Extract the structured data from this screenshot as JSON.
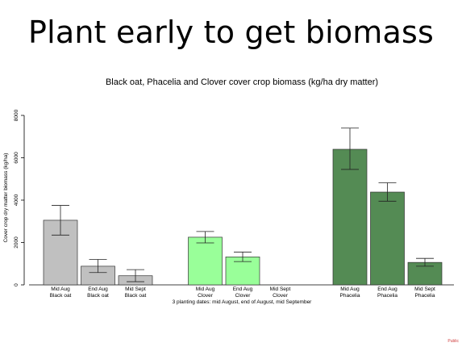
{
  "slide": {
    "title": "Plant early to get biomass",
    "footer": "Public"
  },
  "chart_data": {
    "type": "bar",
    "title": "Black oat, Phacelia and Clover cover crop biomass (kg/ha dry matter)",
    "xlabel": "3 planting dates: mid August, end of August, mid September",
    "ylabel": "Cover crop dry matter biomass (kg/ha)",
    "ylim": [
      0,
      8000
    ],
    "yticks": [
      0,
      2000,
      4000,
      6000,
      8000
    ],
    "grid": false,
    "colors": {
      "black_oat": "#c0c0c0",
      "clover": "#99ff99",
      "phacelia": "#548b54"
    },
    "bars": [
      {
        "line1": "Mid Aug",
        "line2": "Black oat",
        "value": 3050,
        "err_low": 2350,
        "err_high": 3750,
        "color": "#c0c0c0"
      },
      {
        "line1": "End Aug",
        "line2": "Black oat",
        "value": 880,
        "err_low": 580,
        "err_high": 1200,
        "color": "#c0c0c0"
      },
      {
        "line1": "Mid Sept",
        "line2": "Black oat",
        "value": 430,
        "err_low": 150,
        "err_high": 720,
        "color": "#c0c0c0"
      },
      {
        "line1": "Mid Aug",
        "line2": "Clover",
        "value": 2250,
        "err_low": 1980,
        "err_high": 2520,
        "color": "#99ff99"
      },
      {
        "line1": "End Aug",
        "line2": "Clover",
        "value": 1320,
        "err_low": 1100,
        "err_high": 1550,
        "color": "#99ff99"
      },
      {
        "line1": "Mid Sept",
        "line2": "Clover",
        "value": 0,
        "err_low": null,
        "err_high": null,
        "color": "#99ff99"
      },
      {
        "line1": "Mid Aug",
        "line2": "Phacelia",
        "value": 6400,
        "err_low": 5450,
        "err_high": 7400,
        "color": "#548b54"
      },
      {
        "line1": "End Aug",
        "line2": "Phacelia",
        "value": 4380,
        "err_low": 3950,
        "err_high": 4820,
        "color": "#548b54"
      },
      {
        "line1": "Mid Sept",
        "line2": "Phacelia",
        "value": 1060,
        "err_low": 880,
        "err_high": 1250,
        "color": "#548b54"
      }
    ]
  }
}
